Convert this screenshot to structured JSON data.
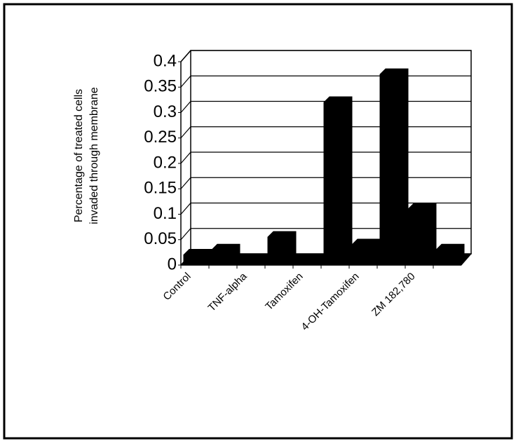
{
  "chart_data": {
    "type": "bar3d",
    "y_label": [
      "Percentage of treated cells",
      "invaded through membrane"
    ],
    "categories": [
      "Control",
      null,
      "TNF-alpha",
      null,
      "Tamoxifen",
      null,
      "4-OH-Tamoxifen",
      null,
      "ZM 182,780",
      null
    ],
    "values": [
      0.02,
      0.03,
      0.01,
      0.055,
      0.005,
      0.32,
      0.04,
      0.375,
      0.11,
      0.03
    ],
    "color": "#000000",
    "ylim": [
      0,
      0.4
    ],
    "yticks": [
      0,
      0.05,
      0.1,
      0.15,
      0.2,
      0.25,
      0.3,
      0.35,
      0.4
    ],
    "grid": true
  }
}
